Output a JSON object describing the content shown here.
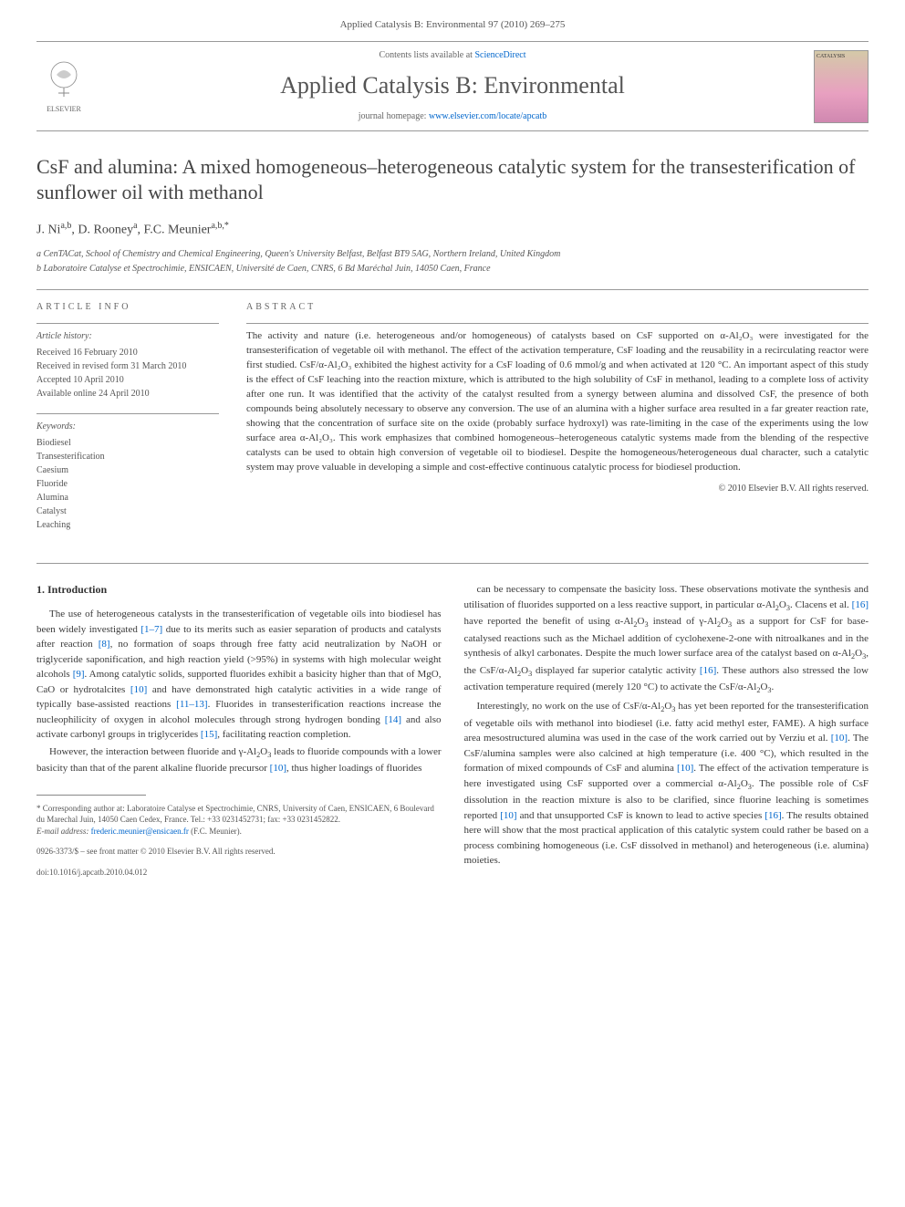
{
  "header": {
    "citation": "Applied Catalysis B: Environmental 97 (2010) 269–275",
    "contents_prefix": "Contents lists available at ",
    "contents_link": "ScienceDirect",
    "journal_name": "Applied Catalysis B: Environmental",
    "homepage_prefix": "journal homepage: ",
    "homepage_url": "www.elsevier.com/locate/apcatb",
    "publisher_label": "ELSEVIER",
    "cover_label": "CATALYSIS"
  },
  "title": "CsF and alumina: A mixed homogeneous–heterogeneous catalytic system for the transesterification of sunflower oil with methanol",
  "authors_html": "J. Ni<sup>a,b</sup>, D. Rooney<sup>a</sup>, F.C. Meunier<sup>a,b,*</sup>",
  "affiliations": [
    "a CenTACat, School of Chemistry and Chemical Engineering, Queen's University Belfast, Belfast BT9 5AG, Northern Ireland, United Kingdom",
    "b Laboratoire Catalyse et Spectrochimie, ENSICAEN, Université de Caen, CNRS, 6 Bd Maréchal Juin, 14050 Caen, France"
  ],
  "info": {
    "heading": "ARTICLE INFO",
    "history_label": "Article history:",
    "history": [
      "Received 16 February 2010",
      "Received in revised form 31 March 2010",
      "Accepted 10 April 2010",
      "Available online 24 April 2010"
    ],
    "keywords_label": "Keywords:",
    "keywords": [
      "Biodiesel",
      "Transesterification",
      "Caesium",
      "Fluoride",
      "Alumina",
      "Catalyst",
      "Leaching"
    ]
  },
  "abstract": {
    "heading": "ABSTRACT",
    "text": "The activity and nature (i.e. heterogeneous and/or homogeneous) of catalysts based on CsF supported on α-Al₂O₃ were investigated for the transesterification of vegetable oil with methanol. The effect of the activation temperature, CsF loading and the reusability in a recirculating reactor were first studied. CsF/α-Al₂O₃ exhibited the highest activity for a CsF loading of 0.6 mmol/g and when activated at 120 °C. An important aspect of this study is the effect of CsF leaching into the reaction mixture, which is attributed to the high solubility of CsF in methanol, leading to a complete loss of activity after one run. It was identified that the activity of the catalyst resulted from a synergy between alumina and dissolved CsF, the presence of both compounds being absolutely necessary to observe any conversion. The use of an alumina with a higher surface area resulted in a far greater reaction rate, showing that the concentration of surface site on the oxide (probably surface hydroxyl) was rate-limiting in the case of the experiments using the low surface area α-Al₂O₃. This work emphasizes that combined homogeneous–heterogeneous catalytic systems made from the blending of the respective catalysts can be used to obtain high conversion of vegetable oil to biodiesel. Despite the homogeneous/heterogeneous dual character, such a catalytic system may prove valuable in developing a simple and cost-effective continuous catalytic process for biodiesel production.",
    "copyright": "© 2010 Elsevier B.V. All rights reserved."
  },
  "body": {
    "intro_heading": "1. Introduction",
    "col1": [
      "The use of heterogeneous catalysts in the transesterification of vegetable oils into biodiesel has been widely investigated [1–7] due to its merits such as easier separation of products and catalysts after reaction [8], no formation of soaps through free fatty acid neutralization by NaOH or triglyceride saponification, and high reaction yield (>95%) in systems with high molecular weight alcohols [9]. Among catalytic solids, supported fluorides exhibit a basicity higher than that of MgO, CaO or hydrotalcites [10] and have demonstrated high catalytic activities in a wide range of typically base-assisted reactions [11–13]. Fluorides in transesterification reactions increase the nucleophilicity of oxygen in alcohol molecules through strong hydrogen bonding [14] and also activate carbonyl groups in triglycerides [15], facilitating reaction completion.",
      "However, the interaction between fluoride and γ-Al₂O₃ leads to fluoride compounds with a lower basicity than that of the parent alkaline fluoride precursor [10], thus higher loadings of fluorides"
    ],
    "col2": [
      "can be necessary to compensate the basicity loss. These observations motivate the synthesis and utilisation of fluorides supported on a less reactive support, in particular α-Al₂O₃. Clacens et al. [16] have reported the benefit of using α-Al₂O₃ instead of γ-Al₂O₃ as a support for CsF for base-catalysed reactions such as the Michael addition of cyclohexene-2-one with nitroalkanes and in the synthesis of alkyl carbonates. Despite the much lower surface area of the catalyst based on α-Al₂O₃, the CsF/α-Al₂O₃ displayed far superior catalytic activity [16]. These authors also stressed the low activation temperature required (merely 120 °C) to activate the CsF/α-Al₂O₃.",
      "Interestingly, no work on the use of CsF/α-Al₂O₃ has yet been reported for the transesterification of vegetable oils with methanol into biodiesel (i.e. fatty acid methyl ester, FAME). A high surface area mesostructured alumina was used in the case of the work carried out by Verziu et al. [10]. The CsF/alumina samples were also calcined at high temperature (i.e. 400 °C), which resulted in the formation of mixed compounds of CsF and alumina [10]. The effect of the activation temperature is here investigated using CsF supported over a commercial α-Al₂O₃. The possible role of CsF dissolution in the reaction mixture is also to be clarified, since fluorine leaching is sometimes reported [10] and that unsupported CsF is known to lead to active species [16]. The results obtained here will show that the most practical application of this catalytic system could rather be based on a process combining homogeneous (i.e. CsF dissolved in methanol) and heterogeneous (i.e. alumina) moieties."
    ]
  },
  "footer": {
    "corresponding": "* Corresponding author at: Laboratoire Catalyse et Spectrochimie, CNRS, University of Caen, ENSICAEN, 6 Boulevard du Marechal Juin, 14050 Caen Cedex, France. Tel.: +33 0231452731; fax: +33 0231452822.",
    "email_label": "E-mail address:",
    "email": "frederic.meunier@ensicaen.fr",
    "email_name": "(F.C. Meunier).",
    "front_matter": "0926-3373/$ – see front matter © 2010 Elsevier B.V. All rights reserved.",
    "doi": "doi:10.1016/j.apcatb.2010.04.012"
  },
  "colors": {
    "text": "#3a3a3a",
    "link": "#0066cc",
    "border": "#999999",
    "muted": "#555555"
  }
}
